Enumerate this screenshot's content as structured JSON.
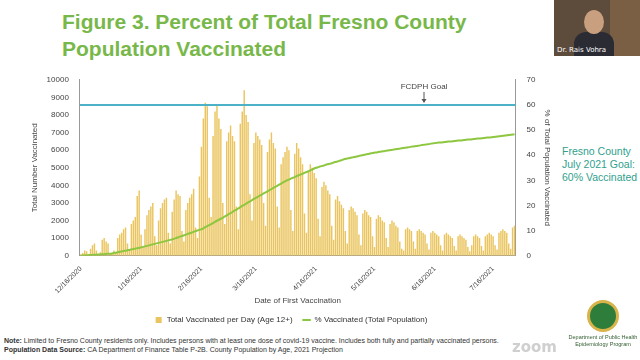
{
  "chart_data": {
    "type": "bar",
    "x_label": "Date of First Vaccination",
    "y_label": "Total Number Vaccinated",
    "y2_label": "% of Total Population Vaccinated",
    "categories": [
      "12/16/2020",
      null,
      null,
      null,
      null,
      null,
      null,
      null,
      null,
      null,
      null,
      null,
      null,
      null,
      null,
      null,
      null,
      null,
      null,
      null,
      null,
      null,
      null,
      null,
      null,
      null,
      null,
      null,
      null,
      null,
      null,
      "1/16/2021",
      null,
      null,
      null,
      null,
      null,
      null,
      null,
      null,
      null,
      null,
      null,
      null,
      null,
      null,
      null,
      null,
      null,
      null,
      null,
      null,
      null,
      null,
      null,
      null,
      null,
      null,
      null,
      null,
      null,
      null,
      "2/16/2021",
      null,
      null,
      null,
      null,
      null,
      null,
      null,
      null,
      null,
      null,
      null,
      null,
      null,
      null,
      null,
      null,
      null,
      null,
      null,
      null,
      null,
      null,
      null,
      null,
      null,
      null,
      null,
      "3/16/2021",
      null,
      null,
      null,
      null,
      null,
      null,
      null,
      null,
      null,
      null,
      null,
      null,
      null,
      null,
      null,
      null,
      null,
      null,
      null,
      null,
      null,
      null,
      null,
      null,
      null,
      null,
      null,
      null,
      null,
      null,
      "4/16/2021",
      null,
      null,
      null,
      null,
      null,
      null,
      null,
      null,
      null,
      null,
      null,
      null,
      null,
      null,
      null,
      null,
      null,
      null,
      null,
      null,
      null,
      null,
      null,
      null,
      null,
      null,
      null,
      null,
      null,
      "5/16/2021",
      null,
      null,
      null,
      null,
      null,
      null,
      null,
      null,
      null,
      null,
      null,
      null,
      null,
      null,
      null,
      null,
      null,
      null,
      null,
      null,
      null,
      null,
      null,
      null,
      null,
      null,
      null,
      null,
      null,
      null,
      "6/16/2021",
      null,
      null,
      null,
      null,
      null,
      null,
      null,
      null,
      null,
      null,
      null,
      null,
      null,
      null,
      null,
      null,
      null,
      null,
      null,
      null,
      null,
      null,
      null,
      null,
      null,
      null,
      null,
      null,
      null,
      "7/16/2021",
      null,
      null,
      null,
      null,
      null,
      null,
      null,
      null,
      null,
      null,
      null
    ],
    "series": [
      {
        "name": "Total Vaccinated per Day (Age 12+)",
        "type": "bar",
        "color": "#eac55f",
        "values": [
          80,
          150,
          300,
          250,
          100,
          400,
          600,
          700,
          300,
          50,
          200,
          900,
          1000,
          800,
          700,
          150,
          100,
          300,
          200,
          1000,
          1200,
          1300,
          1500,
          1600,
          700,
          300,
          1800,
          2000,
          2200,
          3400,
          3700,
          1200,
          500,
          1500,
          2300,
          2600,
          2800,
          3000,
          1100,
          600,
          2000,
          2700,
          3000,
          3200,
          3300,
          1300,
          700,
          2500,
          3200,
          3700,
          3500,
          3400,
          1400,
          800,
          2600,
          3000,
          3300,
          3500,
          3800,
          1600,
          1000,
          4500,
          6200,
          7800,
          8700,
          8500,
          3300,
          2200,
          6800,
          8200,
          8600,
          7800,
          7200,
          3000,
          1800,
          6500,
          7000,
          7400,
          6800,
          6500,
          2800,
          1500,
          7500,
          8200,
          9400,
          8000,
          7600,
          3500,
          2000,
          6400,
          7000,
          6800,
          6600,
          6300,
          3000,
          1700,
          5900,
          6600,
          7000,
          6400,
          6100,
          2800,
          1600,
          5200,
          5600,
          5900,
          6200,
          6000,
          2600,
          1400,
          5800,
          6400,
          6100,
          5600,
          5200,
          2400,
          1300,
          4800,
          5200,
          5000,
          4700,
          4400,
          2100,
          1100,
          3900,
          4200,
          4000,
          3700,
          3500,
          1700,
          900,
          3200,
          3400,
          3100,
          2900,
          2700,
          1400,
          700,
          2600,
          2800,
          2700,
          2500,
          2300,
          1200,
          600,
          2400,
          2600,
          2500,
          2300,
          2200,
          1100,
          500,
          2100,
          2300,
          2200,
          2000,
          1900,
          1000,
          500,
          1800,
          2000,
          1900,
          1700,
          1600,
          800,
          400,
          300,
          1500,
          1600,
          1500,
          1400,
          800,
          400,
          1400,
          1500,
          1400,
          1300,
          1200,
          700,
          350,
          1300,
          1400,
          1300,
          1200,
          1100,
          600,
          300,
          1200,
          1300,
          1200,
          1100,
          1000,
          550,
          300,
          1100,
          1200,
          1100,
          1000,
          900,
          500,
          250,
          600,
          1100,
          1200,
          1100,
          1000,
          550,
          300,
          1100,
          1200,
          1300,
          1200,
          1100,
          600,
          350,
          1300,
          1400,
          1500,
          1400,
          1300,
          700,
          400,
          1600,
          1700
        ]
      },
      {
        "name": "% Vaccinated (Total Population)",
        "type": "line",
        "color": "#8dc63f",
        "axis": "y2",
        "values": [
          0.0,
          0.1,
          0.1,
          0.2,
          0.2,
          0.3,
          0.3,
          0.4,
          0.4,
          0.5,
          0.5,
          0.6,
          0.6,
          0.7,
          0.8,
          0.8,
          0.9,
          1.1,
          1.2,
          1.4,
          1.5,
          1.7,
          1.9,
          2.0,
          2.2,
          2.3,
          2.5,
          2.7,
          2.8,
          3.0,
          3.1,
          3.3,
          3.5,
          3.7,
          3.9,
          4.1,
          4.3,
          4.5,
          4.7,
          4.9,
          5.1,
          5.3,
          5.5,
          5.7,
          5.9,
          6.1,
          6.3,
          6.5,
          6.8,
          7.0,
          7.3,
          7.6,
          7.8,
          8.1,
          8.4,
          8.7,
          8.9,
          9.2,
          9.5,
          9.8,
          10.0,
          10.3,
          10.5,
          10.9,
          11.4,
          11.8,
          12.2,
          12.6,
          13.0,
          13.5,
          13.9,
          14.3,
          14.7,
          15.1,
          15.6,
          16.0,
          16.5,
          16.9,
          17.4,
          17.9,
          18.3,
          18.8,
          19.3,
          19.8,
          20.2,
          20.7,
          21.2,
          21.6,
          22.1,
          22.6,
          23.0,
          23.4,
          23.9,
          24.3,
          24.8,
          25.2,
          25.6,
          26.1,
          26.5,
          27.0,
          27.4,
          27.8,
          28.3,
          28.7,
          29.2,
          29.6,
          30.0,
          30.3,
          30.7,
          31.0,
          31.3,
          31.7,
          32.0,
          32.3,
          32.6,
          33.0,
          33.3,
          33.6,
          34.0,
          34.3,
          34.7,
          35.0,
          35.2,
          35.5,
          35.7,
          35.9,
          36.2,
          36.4,
          36.6,
          36.8,
          37.1,
          37.3,
          37.5,
          37.8,
          38.0,
          38.3,
          38.5,
          38.7,
          38.8,
          39.0,
          39.2,
          39.3,
          39.5,
          39.7,
          39.9,
          40.0,
          40.2,
          40.4,
          40.5,
          40.7,
          40.9,
          41.0,
          41.1,
          41.3,
          41.4,
          41.5,
          41.6,
          41.8,
          41.9,
          42.0,
          42.1,
          42.3,
          42.4,
          42.5,
          42.6,
          42.8,
          42.9,
          43.0,
          43.1,
          43.2,
          43.4,
          43.5,
          43.6,
          43.7,
          43.8,
          44.0,
          44.1,
          44.2,
          44.3,
          44.4,
          44.6,
          44.7,
          44.8,
          44.9,
          45.0,
          45.0,
          45.1,
          45.2,
          45.3,
          45.4,
          45.4,
          45.5,
          45.6,
          45.7,
          45.8,
          45.8,
          45.9,
          46.0,
          46.1,
          46.2,
          46.2,
          46.3,
          46.4,
          46.5,
          46.6,
          46.6,
          46.7,
          46.8,
          46.9,
          47.0,
          47.0,
          47.1,
          47.2,
          47.3,
          47.4,
          47.5,
          47.6,
          47.7,
          47.8,
          47.9,
          48.0,
          48.1,
          48.2,
          48.3
        ]
      }
    ],
    "ylim": [
      0,
      10000
    ],
    "yticks": [
      0,
      1000,
      2000,
      3000,
      4000,
      5000,
      6000,
      7000,
      8000,
      9000,
      10000
    ],
    "y2lim": [
      0,
      70
    ],
    "y2ticks": [
      0,
      10,
      20,
      30,
      40,
      50,
      60,
      70
    ],
    "annotations": [
      {
        "text": "FCDPH Goal",
        "value": 60,
        "axis": "y2",
        "color": "#4bb2c8"
      }
    ],
    "grid": false,
    "legend": "bottom"
  },
  "slide": {
    "title": [
      "Figure 3. Percent of Total Fresno County",
      "Population Vaccinated"
    ],
    "side_text": [
      "Fresno County",
      "July 2021 Goal:",
      "60% Vaccinated"
    ],
    "speaker": "Dr. Rais Vohra",
    "note_label": "Note:",
    "note": "Limited to Fresno County residents only. Includes persons with at least one dose of covid-19 vaccine. Includes both fully and partially vaccinated persons.",
    "source_label": "Population Data Source:",
    "source": "CA Department of Finance Table P-2B. County Population by Age, 2021 Projection",
    "zoom": "zoom",
    "logo_text": [
      "Department of Public Health",
      "Epidemiology Program"
    ]
  }
}
